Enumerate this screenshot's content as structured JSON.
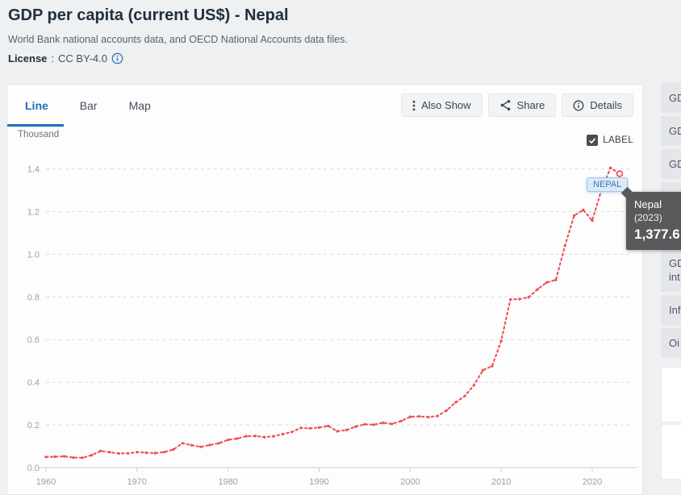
{
  "header": {
    "title": "GDP per capita (current US$) - Nepal",
    "subtitle": "World Bank national accounts data, and OECD National Accounts data files.",
    "license": {
      "label": "License",
      "separator": ":",
      "value": "CC BY-4.0",
      "icon": "info-circle"
    }
  },
  "toolbar": {
    "tabs": [
      {
        "label": "Line",
        "active": true
      },
      {
        "label": "Bar",
        "active": false
      },
      {
        "label": "Map",
        "active": false
      }
    ],
    "actions": [
      {
        "label": "Also Show",
        "icon": "kebab-vertical"
      },
      {
        "label": "Share",
        "icon": "share-nodes"
      },
      {
        "label": "Details",
        "icon": "info-circle"
      }
    ]
  },
  "chart": {
    "unit_label": "Thousand",
    "label_toggle": {
      "label": "LABEL",
      "checked": true
    },
    "series_badge": "NEPAL",
    "tooltip": {
      "country": "Nepal",
      "year": "(2023)",
      "value": "1,377.6"
    },
    "y_axis_labels": [
      "1.4",
      "1.2",
      "1.0",
      "0.8",
      "0.6",
      "0.4",
      "0.2",
      "0.0"
    ],
    "x_axis_labels": [
      "1960",
      "1970",
      "1980",
      "1990",
      "2000",
      "2010",
      "2020"
    ]
  },
  "chart_data": {
    "type": "line",
    "title": "GDP per capita (current US$) - Nepal",
    "xlabel": "",
    "ylabel": "Thousand (current US$)",
    "xlim": [
      1960,
      2024
    ],
    "ylim": [
      0,
      1.45
    ],
    "grid": "horizontal dashed gridlines",
    "legend": "inline badge NEPAL at line end",
    "line_color": "#ef4a52",
    "line_style": "red dashed line with small point markers; last point open circle",
    "highlighted_point": {
      "year": 2023,
      "value_thousand": 1.3776,
      "value_usd": "1,377.6"
    },
    "x": [
      1960,
      1961,
      1962,
      1963,
      1964,
      1965,
      1966,
      1967,
      1968,
      1969,
      1970,
      1971,
      1972,
      1973,
      1974,
      1975,
      1976,
      1977,
      1978,
      1979,
      1980,
      1981,
      1982,
      1983,
      1984,
      1985,
      1986,
      1987,
      1988,
      1989,
      1990,
      1991,
      1992,
      1993,
      1994,
      1995,
      1996,
      1997,
      1998,
      1999,
      2000,
      2001,
      2002,
      2003,
      2004,
      2005,
      2006,
      2007,
      2008,
      2009,
      2010,
      2011,
      2012,
      2013,
      2014,
      2015,
      2016,
      2017,
      2018,
      2019,
      2020,
      2021,
      2022,
      2023
    ],
    "series": [
      {
        "name": "Nepal",
        "values": [
          0.05,
          0.051,
          0.053,
          0.047,
          0.046,
          0.058,
          0.078,
          0.072,
          0.066,
          0.067,
          0.072,
          0.07,
          0.068,
          0.073,
          0.085,
          0.114,
          0.105,
          0.097,
          0.106,
          0.114,
          0.13,
          0.136,
          0.147,
          0.148,
          0.143,
          0.147,
          0.157,
          0.167,
          0.186,
          0.184,
          0.188,
          0.195,
          0.17,
          0.176,
          0.192,
          0.203,
          0.201,
          0.21,
          0.205,
          0.218,
          0.238,
          0.24,
          0.237,
          0.242,
          0.268,
          0.306,
          0.336,
          0.386,
          0.457,
          0.476,
          0.594,
          0.788,
          0.79,
          0.798,
          0.836,
          0.868,
          0.88,
          1.04,
          1.181,
          1.208,
          1.158,
          1.3,
          1.405,
          1.3776
        ]
      }
    ]
  },
  "sidebar": {
    "items": [
      {
        "label": "GD",
        "truncated": true
      },
      {
        "label": "GD",
        "truncated": true
      },
      {
        "label": "GD",
        "truncated": true
      },
      {
        "label": "GD",
        "truncated": true
      },
      {
        "label": "GD",
        "truncated": true
      },
      {
        "label": "GD",
        "label2": "int",
        "truncated": true
      },
      {
        "label": "Inf",
        "truncated": true
      },
      {
        "label": "Oi",
        "truncated": true
      }
    ]
  },
  "colors": {
    "accent_blue": "#1b70b8",
    "line_red": "#ef4a52",
    "tooltip_bg": "#58595b",
    "badge_bg": "#dce9f7",
    "badge_border": "#a5c6e6",
    "page_bg": "#eef0f1",
    "card_bg": "#fdfdfe",
    "sidebar_item_bg": "#e4e6e9",
    "grid_line": "#d9dbdc",
    "axis_text": "#9aa1a7"
  }
}
